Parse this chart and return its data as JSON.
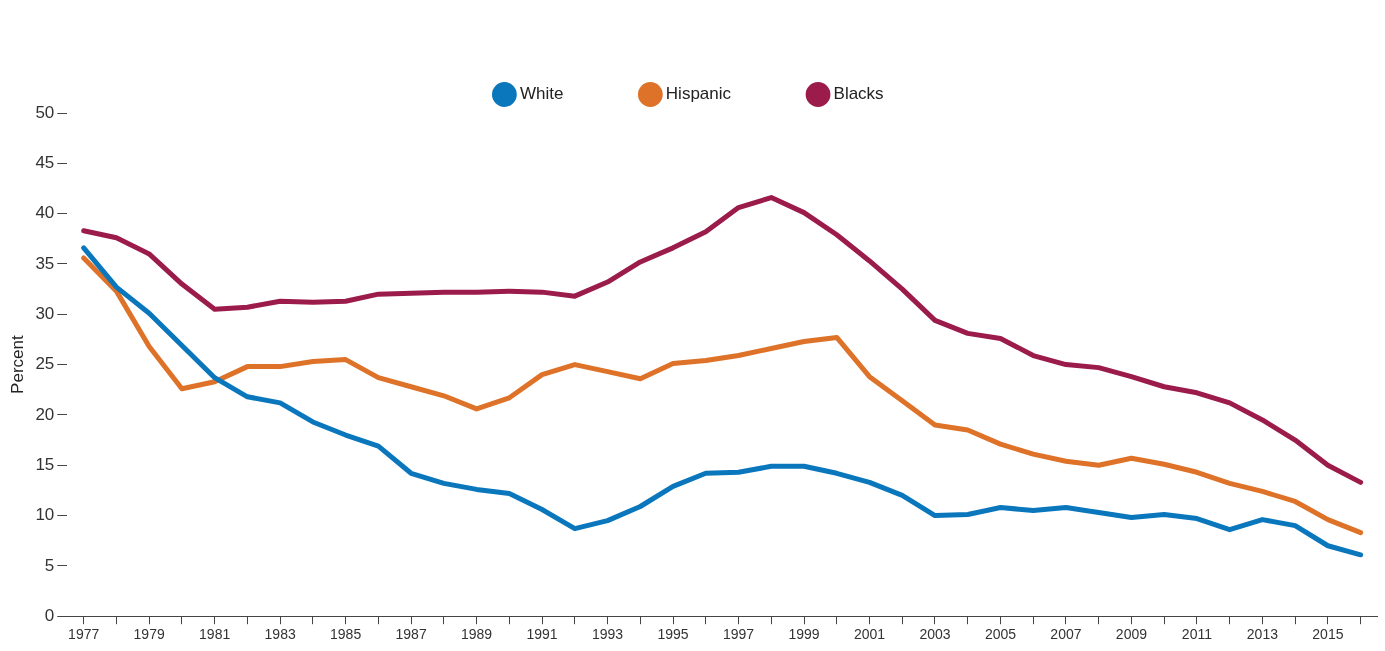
{
  "chart_data": {
    "type": "line",
    "ylabel": "Percent",
    "x": [
      1977,
      1978,
      1979,
      1980,
      1981,
      1982,
      1983,
      1984,
      1985,
      1986,
      1987,
      1988,
      1989,
      1990,
      1991,
      1992,
      1993,
      1994,
      1995,
      1996,
      1997,
      1998,
      1999,
      2000,
      2001,
      2002,
      2003,
      2004,
      2005,
      2006,
      2007,
      2008,
      2009,
      2010,
      2011,
      2012,
      2013,
      2014,
      2015,
      2016
    ],
    "series": [
      {
        "name": "White",
        "color": "#0a77bd",
        "values": [
          36.6,
          32.7,
          30.1,
          26.9,
          23.7,
          21.8,
          21.2,
          19.3,
          18.0,
          16.9,
          14.2,
          13.2,
          12.6,
          12.2,
          10.6,
          8.7,
          9.5,
          10.9,
          12.9,
          14.2,
          14.3,
          14.9,
          14.9,
          14.2,
          13.3,
          12.0,
          10.0,
          10.1,
          10.8,
          10.5,
          10.8,
          10.3,
          9.8,
          10.1,
          9.7,
          8.6,
          9.6,
          9.0,
          7.0,
          6.1
        ]
      },
      {
        "name": "Hispanic",
        "color": "#dd7228",
        "values": [
          35.6,
          32.3,
          26.8,
          22.6,
          23.3,
          24.8,
          24.8,
          25.3,
          25.5,
          23.7,
          22.8,
          21.9,
          20.6,
          21.7,
          24.0,
          25.0,
          24.3,
          23.6,
          25.1,
          25.4,
          25.9,
          26.6,
          27.3,
          27.7,
          23.8,
          21.4,
          19.0,
          18.5,
          17.1,
          16.1,
          15.4,
          15.0,
          15.7,
          15.1,
          14.3,
          13.2,
          12.4,
          11.4,
          9.6,
          8.3
        ]
      },
      {
        "name": "Blacks",
        "color": "#9b1b4a",
        "values": [
          38.3,
          37.6,
          36.0,
          33.0,
          30.5,
          30.7,
          31.3,
          31.2,
          31.3,
          32.0,
          32.1,
          32.2,
          32.2,
          32.3,
          32.2,
          31.8,
          33.2,
          35.2,
          36.6,
          38.2,
          40.6,
          41.6,
          40.1,
          37.9,
          35.3,
          32.5,
          29.4,
          28.1,
          27.6,
          25.9,
          25.0,
          24.7,
          23.8,
          22.8,
          22.2,
          21.2,
          19.5,
          17.5,
          15.0,
          13.3
        ]
      }
    ],
    "xlim": [
      1976.5,
      2016.5
    ],
    "xticks": [
      1977,
      {
        "value": 1978,
        "label": null
      },
      1979,
      {
        "value": 1980,
        "label": null
      },
      1981,
      {
        "value": 1982,
        "label": null
      },
      1983,
      {
        "value": 1984,
        "label": null
      },
      1985,
      {
        "value": 1986,
        "label": null
      },
      1987,
      {
        "value": 1988,
        "label": null
      },
      1989,
      {
        "value": 1990,
        "label": null
      },
      1991,
      {
        "value": 1992,
        "label": null
      },
      1993,
      {
        "value": 1994,
        "label": null
      },
      1995,
      {
        "value": 1996,
        "label": null
      },
      1997,
      {
        "value": 1998,
        "label": null
      },
      1999,
      {
        "value": 2000,
        "label": null
      },
      2001,
      {
        "value": 2002,
        "label": null
      },
      2003,
      {
        "value": 2004,
        "label": null
      },
      2005,
      {
        "value": 2006,
        "label": null
      },
      2007,
      {
        "value": 2008,
        "label": null
      },
      2009,
      {
        "value": 2010,
        "label": null
      },
      2011,
      {
        "value": 2012,
        "label": null
      },
      2013,
      {
        "value": 2014,
        "label": null
      },
      2015,
      {
        "value": 2016,
        "label": null
      }
    ],
    "ylim": [
      0,
      50
    ],
    "yticks": [
      0,
      5,
      10,
      15,
      20,
      25,
      30,
      35,
      40,
      45,
      50
    ],
    "grid": false,
    "legend": "top",
    "marker": "none",
    "line_style": "solid"
  }
}
